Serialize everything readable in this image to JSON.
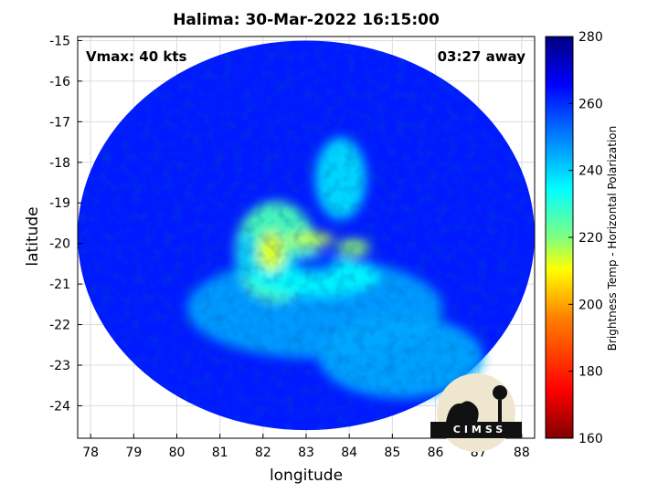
{
  "chart_data": {
    "type": "heatmap",
    "title": "Halima: 30-Mar-2022 16:15:00",
    "xlabel": "longitude",
    "ylabel": "latitude",
    "xlim": [
      77.7,
      88.3
    ],
    "ylim": [
      -24.8,
      -14.9
    ],
    "xticks": [
      78,
      79,
      80,
      81,
      82,
      83,
      84,
      85,
      86,
      87,
      88
    ],
    "yticks": [
      -15,
      -16,
      -17,
      -18,
      -19,
      -20,
      -21,
      -22,
      -23,
      -24
    ],
    "grid": true,
    "colorbar": {
      "label": "Brightness Temp - Horizontal Polarization",
      "range": [
        160,
        280
      ],
      "ticks": [
        160,
        180,
        200,
        220,
        240,
        260,
        280
      ],
      "colors": [
        "#800000",
        "#ff0000",
        "#ff8000",
        "#ffff00",
        "#80ff80",
        "#00ffff",
        "#0080ff",
        "#0000ff",
        "#000080"
      ]
    },
    "swath": {
      "center_lon": 83.0,
      "center_lat": -19.8,
      "radius_lon": 5.3,
      "radius_lat": 4.8
    },
    "annotations": {
      "vmax": "Vmax: 40 kts",
      "time_away": "03:27 away"
    },
    "features": [
      {
        "name": "background",
        "lon": 83.0,
        "lat": -19.8,
        "temp": 262
      },
      {
        "name": "outer-warm-band",
        "lon": 83.2,
        "lat": -21.6,
        "temp": 246
      },
      {
        "name": "southeast-warm-band",
        "lon": 85.2,
        "lat": -22.8,
        "temp": 245
      },
      {
        "name": "spiral-band-west",
        "lon": 82.3,
        "lat": -20.2,
        "temp": 226
      },
      {
        "name": "spiral-band-south",
        "lon": 83.2,
        "lat": -20.8,
        "temp": 235
      },
      {
        "name": "spiral-band-north",
        "lon": 83.8,
        "lat": -18.4,
        "temp": 238
      },
      {
        "name": "eyewall-west",
        "lon": 82.2,
        "lat": -20.2,
        "temp": 212
      },
      {
        "name": "eyewall-north",
        "lon": 83.1,
        "lat": -19.9,
        "temp": 215
      },
      {
        "name": "eyewall-northeast",
        "lon": 84.1,
        "lat": -20.1,
        "temp": 218
      },
      {
        "name": "cold-ring-west",
        "lon": 81.6,
        "lat": -20.3,
        "temp": 240
      },
      {
        "name": "eye-center",
        "lon": 83.2,
        "lat": -20.5,
        "temp": 258
      }
    ]
  },
  "logo": {
    "text": "CIMSS"
  }
}
